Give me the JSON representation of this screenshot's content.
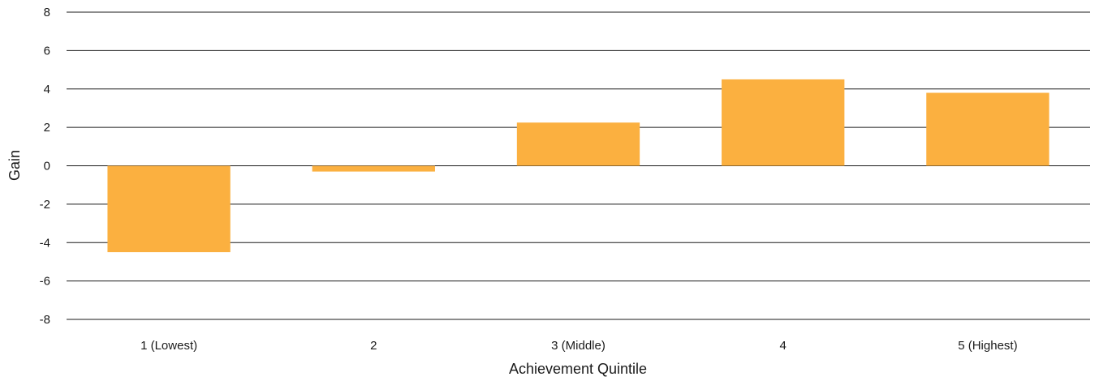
{
  "chart_data": {
    "type": "bar",
    "categories": [
      "1 (Lowest)",
      "2",
      "3 (Middle)",
      "4",
      "5 (Highest)"
    ],
    "values": [
      -4.5,
      -0.3,
      2.25,
      4.5,
      3.8
    ],
    "title": "",
    "xlabel": "Achievement Quintile",
    "ylabel": "Gain",
    "ylim": [
      -8,
      8
    ],
    "yticks": [
      8,
      6,
      4,
      2,
      0,
      -2,
      -4,
      -6,
      -8
    ],
    "grid": true,
    "legend": "none",
    "bar_color": "#FBB040"
  }
}
